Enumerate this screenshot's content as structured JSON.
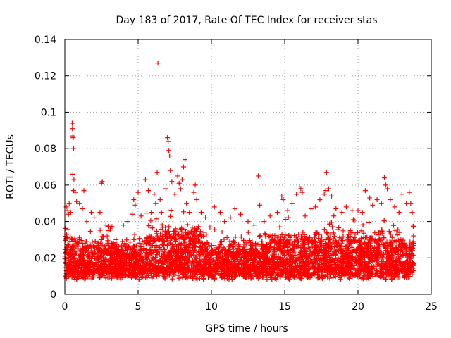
{
  "chart_data": {
    "type": "scatter",
    "title": "Day 183 of 2017, Rate Of TEC Index for receiver stas",
    "xlabel": "GPS time / hours",
    "ylabel": "ROTI / TECUs",
    "xlim": [
      0,
      25
    ],
    "ylim": [
      0,
      0.14
    ],
    "x_ticks": [
      0,
      5,
      10,
      15,
      20,
      25
    ],
    "x_tick_labels": [
      "0",
      "5",
      "10",
      "15",
      "20",
      "25"
    ],
    "y_ticks": [
      0,
      0.02,
      0.04,
      0.06,
      0.08,
      0.1,
      0.12,
      0.14
    ],
    "y_tick_labels": [
      "0",
      "0.02",
      "0.04",
      "0.06",
      "0.08",
      "0.1",
      "0.12",
      "0.14"
    ],
    "grid": true,
    "marker": "plus",
    "color": "#ff0000",
    "series": [
      {
        "name": "ROTI",
        "points": [
          [
            0.1,
            0.048
          ],
          [
            0.2,
            0.046
          ],
          [
            0.25,
            0.044
          ],
          [
            0.3,
            0.05
          ],
          [
            0.4,
            0.045
          ],
          [
            0.5,
            0.094
          ],
          [
            0.52,
            0.091
          ],
          [
            0.55,
            0.087
          ],
          [
            0.57,
            0.086
          ],
          [
            0.6,
            0.08
          ],
          [
            0.55,
            0.066
          ],
          [
            0.62,
            0.063
          ],
          [
            0.6,
            0.057
          ],
          [
            0.7,
            0.056
          ],
          [
            0.8,
            0.051
          ],
          [
            1.0,
            0.05
          ],
          [
            1.2,
            0.047
          ],
          [
            1.3,
            0.057
          ],
          [
            1.5,
            0.04
          ],
          [
            1.8,
            0.045
          ],
          [
            2.0,
            0.042
          ],
          [
            2.4,
            0.045
          ],
          [
            2.5,
            0.061
          ],
          [
            2.55,
            0.062
          ],
          [
            2.8,
            0.038
          ],
          [
            3.0,
            0.035
          ],
          [
            3.5,
            0.03
          ],
          [
            4.0,
            0.038
          ],
          [
            4.3,
            0.04
          ],
          [
            4.6,
            0.044
          ],
          [
            4.7,
            0.052
          ],
          [
            4.8,
            0.049
          ],
          [
            5.0,
            0.056
          ],
          [
            5.2,
            0.043
          ],
          [
            5.5,
            0.063
          ],
          [
            5.7,
            0.057
          ],
          [
            5.9,
            0.045
          ],
          [
            6.1,
            0.055
          ],
          [
            6.2,
            0.05
          ],
          [
            6.3,
            0.067
          ],
          [
            6.35,
            0.127
          ],
          [
            6.5,
            0.052
          ],
          [
            6.6,
            0.045
          ],
          [
            6.9,
            0.058
          ],
          [
            7.0,
            0.086
          ],
          [
            7.05,
            0.084
          ],
          [
            7.1,
            0.079
          ],
          [
            7.15,
            0.076
          ],
          [
            7.2,
            0.068
          ],
          [
            7.3,
            0.062
          ],
          [
            7.5,
            0.055
          ],
          [
            7.7,
            0.065
          ],
          [
            7.8,
            0.061
          ],
          [
            7.9,
            0.058
          ],
          [
            8.0,
            0.063
          ],
          [
            8.1,
            0.07
          ],
          [
            8.2,
            0.074
          ],
          [
            8.3,
            0.05
          ],
          [
            8.5,
            0.045
          ],
          [
            8.8,
            0.056
          ],
          [
            8.9,
            0.06
          ],
          [
            9.0,
            0.052
          ],
          [
            9.3,
            0.045
          ],
          [
            9.6,
            0.042
          ],
          [
            9.9,
            0.037
          ],
          [
            10.2,
            0.048
          ],
          [
            10.6,
            0.045
          ],
          [
            10.9,
            0.04
          ],
          [
            11.3,
            0.042
          ],
          [
            11.6,
            0.047
          ],
          [
            12.0,
            0.044
          ],
          [
            12.5,
            0.04
          ],
          [
            12.9,
            0.038
          ],
          [
            13.2,
            0.065
          ],
          [
            13.3,
            0.049
          ],
          [
            13.6,
            0.04
          ],
          [
            14.0,
            0.043
          ],
          [
            14.5,
            0.045
          ],
          [
            14.8,
            0.054
          ],
          [
            14.9,
            0.052
          ],
          [
            15.2,
            0.046
          ],
          [
            15.5,
            0.05
          ],
          [
            15.8,
            0.055
          ],
          [
            16.0,
            0.059
          ],
          [
            16.1,
            0.058
          ],
          [
            16.2,
            0.056
          ],
          [
            16.4,
            0.043
          ],
          [
            16.8,
            0.047
          ],
          [
            17.1,
            0.048
          ],
          [
            17.4,
            0.052
          ],
          [
            17.7,
            0.055
          ],
          [
            17.8,
            0.057
          ],
          [
            17.85,
            0.067
          ],
          [
            18.0,
            0.058
          ],
          [
            18.2,
            0.054
          ],
          [
            18.5,
            0.047
          ],
          [
            18.9,
            0.045
          ],
          [
            19.2,
            0.048
          ],
          [
            19.6,
            0.046
          ],
          [
            20.0,
            0.046
          ],
          [
            20.3,
            0.045
          ],
          [
            20.5,
            0.057
          ],
          [
            20.8,
            0.053
          ],
          [
            21.0,
            0.049
          ],
          [
            21.3,
            0.052
          ],
          [
            21.6,
            0.05
          ],
          [
            21.8,
            0.064
          ],
          [
            21.9,
            0.06
          ],
          [
            22.0,
            0.058
          ],
          [
            22.2,
            0.052
          ],
          [
            22.5,
            0.048
          ],
          [
            22.8,
            0.045
          ],
          [
            23.0,
            0.055
          ],
          [
            23.3,
            0.05
          ],
          [
            23.5,
            0.056
          ],
          [
            23.6,
            0.05
          ],
          [
            23.7,
            0.045
          ]
        ],
        "dense_band": {
          "x_range": [
            0,
            23.8
          ],
          "y_typical_range": [
            0.005,
            0.035
          ],
          "y_floor": 0.003
        }
      }
    ]
  }
}
